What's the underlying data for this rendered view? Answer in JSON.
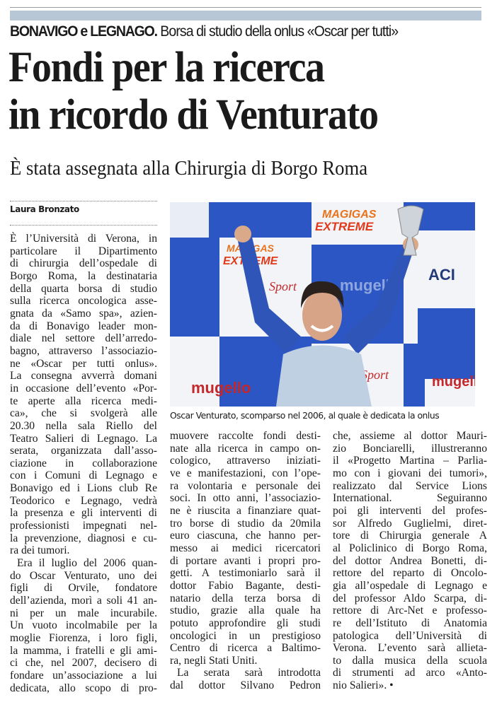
{
  "header": {
    "kicker_bold": "BONAVIGO e LEGNAGO.",
    "kicker_text": "Borsa di studio della onlus «Oscar per tutti»",
    "title_lines": [
      "Fondi per la ricerca",
      "in ricordo di Venturato"
    ],
    "subtitle": "È stata assegnata alla Chirurgia di Borgo Roma",
    "band_color": "#b7c7d6"
  },
  "byline": "Laura Bronzato",
  "photo": {
    "caption": "Oscar Venturato, scomparso nel 2006, al quale è dedicata la onlus",
    "logos": [
      "MAGIGAS",
      "EXTREME COMPETITION",
      "ACI Sport",
      "mugello"
    ]
  },
  "columns": [
    {
      "paragraphs": [
        {
          "indent": false,
          "lines": [
            "È l’Università di Verona, in",
            "particolare il Dipartimento",
            "di chirurgia dell’ospedale di",
            "Borgo Roma, la destinataria",
            "della quarta borsa di studio",
            "sulla ricerca oncologica asse-",
            "gnata da «Samo spa», azien-",
            "da di Bonavigo leader mon-",
            "diale nel settore dell’arredo-",
            "bagno, attraverso l’associazio-",
            "ne «Oscar per tutti onlus».",
            "La consegna avverrà domani",
            "in occasione dell’evento «Por-",
            "te aperte alla ricerca medi-",
            "ca», che si svolgerà alle",
            "20.30 nella sala Riello del",
            "Teatro Salieri di Legnago. La",
            "serata, organizzata dall’asso-",
            "ciazione in collaborazione",
            "con i Comuni di Legnago e",
            "Bonavigo ed i Lions club Re",
            "Teodorico e Legnago, vedrà",
            "la presenza e gli interventi di",
            "professionisti impegnati nel-",
            "la prevenzione, diagnosi e cu-",
            "ra dei tumori."
          ]
        },
        {
          "indent": true,
          "lines": [
            "Era il luglio del 2006 quan-",
            "do Oscar Venturato, uno dei",
            "figli di Orvile, fondatore",
            "dell’azienda, morì a soli 41 an-",
            "ni per un male incurabile.",
            "Un vuoto incolmabile per la",
            "moglie Fiorenza, i loro figli,",
            "la mamma, i fratelli e gli ami-",
            "ci che, nel 2007, decisero di",
            "fondare un’associazione a lui",
            "dedicata, allo scopo di pro-"
          ],
          "continues": true
        }
      ]
    },
    {
      "paragraphs": [
        {
          "indent": false,
          "lines": [
            "muovere raccolte fondi desti-",
            "nate alla ricerca in campo on-",
            "cologico, attraverso iniziati-",
            "ve e manifestazioni, con l’ope-",
            "ra volontaria e personale dei",
            "soci. In otto anni, l’associazio-",
            "ne è riuscita a finanziare quat-",
            "tro borse di studio da 20mila",
            "euro ciascuna, che hanno per-",
            "messo ai medici ricercatori",
            "di portare avanti i propri pro-",
            "getti. A testimoniarlo sarà il",
            "dottor Fabio Bagante, desti-",
            "natario della terza borsa di",
            "studio, grazie alla quale ha",
            "potuto approfondire gli studi",
            "oncologici in un prestigioso",
            "Centro di ricerca a Baltimo-",
            "ra, negli Stati Uniti."
          ]
        },
        {
          "indent": true,
          "lines": [
            "La serata sarà introdotta",
            "dal dottor Silvano Pedron"
          ],
          "continues": true
        }
      ]
    },
    {
      "paragraphs": [
        {
          "indent": false,
          "lines": [
            "che, assieme al dottor Mauri-",
            "zio Bonciarelli, illustreranno",
            "il «Progetto Martina – Parlia-",
            "mo con i giovani dei tumori»,",
            "realizzato dal Service Lions",
            "International.   Seguiranno",
            "poi gli interventi del profes-",
            "sor Alfredo Guglielmi, diret-",
            "tore di Chirurgia generale A",
            "al Policlinico di Borgo Roma,",
            "del dottor Andrea Bonetti, di-",
            "rettore del reparto di Oncolo-",
            "gia all’ospedale di Legnago e",
            "del professor Aldo Scarpa, di-",
            "rettore di Arc-Net e professo-",
            "re dell’Istituto di Anatomia",
            "patologica dell’Università di",
            "Verona. L’evento sarà allieta-",
            "to dalla musica della scuola",
            "di strumenti ad arco «Anto-",
            "nio Salieri». •"
          ]
        }
      ]
    }
  ]
}
